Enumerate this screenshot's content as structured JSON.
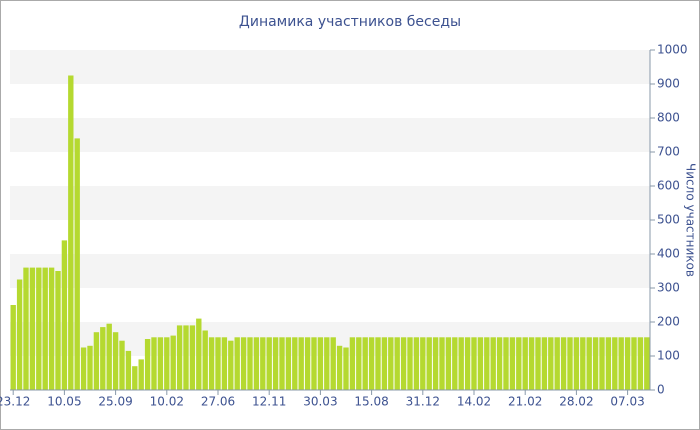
{
  "chart_data": {
    "type": "bar",
    "title": "Динамика участников беседы",
    "y_label": "Число участников",
    "categories": [
      "23.12",
      null,
      null,
      null,
      null,
      null,
      null,
      null,
      "10.05",
      null,
      null,
      null,
      null,
      null,
      null,
      null,
      "25.09",
      null,
      null,
      null,
      null,
      null,
      null,
      null,
      "10.02",
      null,
      null,
      null,
      null,
      null,
      null,
      null,
      "27.06",
      null,
      null,
      null,
      null,
      null,
      null,
      null,
      "12.11",
      null,
      null,
      null,
      null,
      null,
      null,
      null,
      "30.03",
      null,
      null,
      null,
      null,
      null,
      null,
      null,
      "15.08",
      null,
      null,
      null,
      null,
      null,
      null,
      null,
      "31.12",
      null,
      null,
      null,
      null,
      null,
      null,
      null,
      "14.02",
      null,
      null,
      null,
      null,
      null,
      null,
      null,
      "21.02",
      null,
      null,
      null,
      null,
      null,
      null,
      null,
      "28.02",
      null,
      null,
      null,
      null,
      null,
      null,
      null,
      "07.03",
      null,
      null,
      null
    ],
    "values": [
      250,
      325,
      360,
      360,
      360,
      360,
      360,
      350,
      440,
      925,
      740,
      125,
      130,
      170,
      185,
      195,
      170,
      145,
      115,
      70,
      90,
      150,
      155,
      155,
      155,
      160,
      190,
      190,
      190,
      210,
      175,
      155,
      155,
      155,
      145,
      155,
      155,
      155,
      155,
      155,
      155,
      155,
      155,
      155,
      155,
      155,
      155,
      155,
      155,
      155,
      155,
      130,
      125,
      155,
      155,
      155,
      155,
      155,
      155,
      155,
      155,
      155,
      155,
      155,
      155,
      155,
      155,
      155,
      155,
      155,
      155,
      155,
      155,
      155,
      155,
      155,
      155,
      155,
      155,
      155,
      155,
      155,
      155,
      155,
      155,
      155,
      155,
      155,
      155,
      155,
      155,
      155,
      155,
      155,
      155,
      155,
      155,
      155,
      155,
      155
    ],
    "color": "#b5d930",
    "ylim": [
      0,
      1000
    ],
    "yticks": [
      0,
      100,
      200,
      300,
      400,
      500,
      600,
      700,
      800,
      900,
      1000
    ],
    "grid": "bands"
  }
}
